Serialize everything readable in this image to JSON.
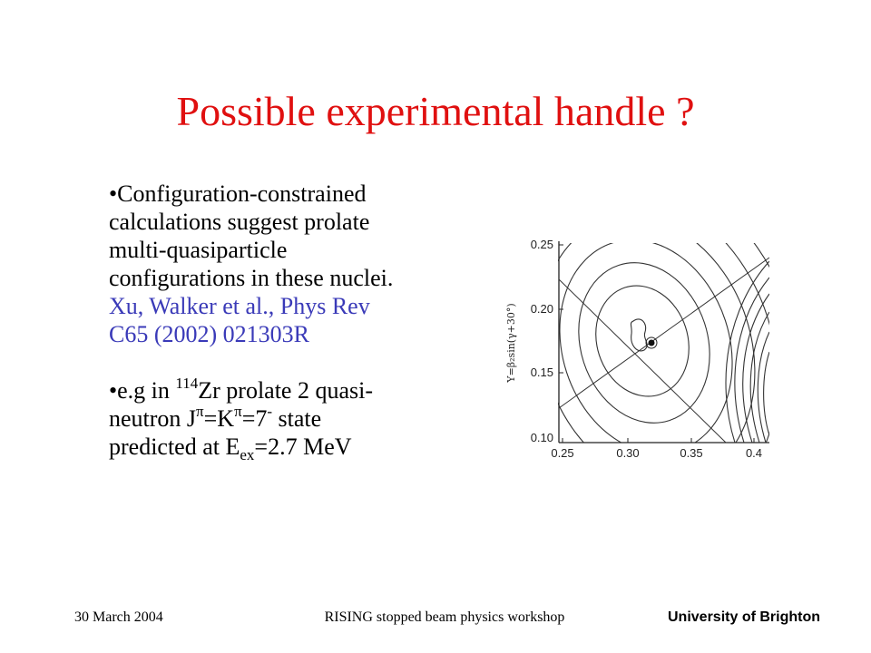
{
  "slide": {
    "title": "Possible experimental handle ?",
    "bullet1": {
      "bullet": "•",
      "lines": [
        "Configuration-constrained",
        "calculations suggest prolate",
        "multi-quasiparticle",
        "configurations  in these nuclei."
      ],
      "reference_lines": [
        "Xu, Walker et al., Phys Rev",
        "C65 (2002) 021303R"
      ]
    },
    "bullet2": {
      "bullet": "•",
      "line1_prefix": "e.g in ",
      "mass_number": "114",
      "line1_element_rest": "Zr  prolate 2 quasi-",
      "line2_prefix": "neutron J",
      "pi_symbol": "π",
      "line2_eq": "=K",
      "line2_eq2": "=7",
      "parity_sup": "-",
      "line2_suffix": "  state",
      "line3_prefix": "predicted at E",
      "ex_sub": "ex",
      "line3_suffix": "=2.7 MeV"
    }
  },
  "figure": {
    "y_axis_label": "Y=β₂sin(γ+30°)",
    "y_ticks": [
      "0.25",
      "0.20",
      "0.15",
      "0.10"
    ],
    "x_ticks": [
      "0.25",
      "0.30",
      "0.35",
      "0.4"
    ]
  },
  "footer": {
    "date": "30 March 2004",
    "event": "RISING stopped beam physics workshop",
    "institution": "University of Brighton"
  }
}
